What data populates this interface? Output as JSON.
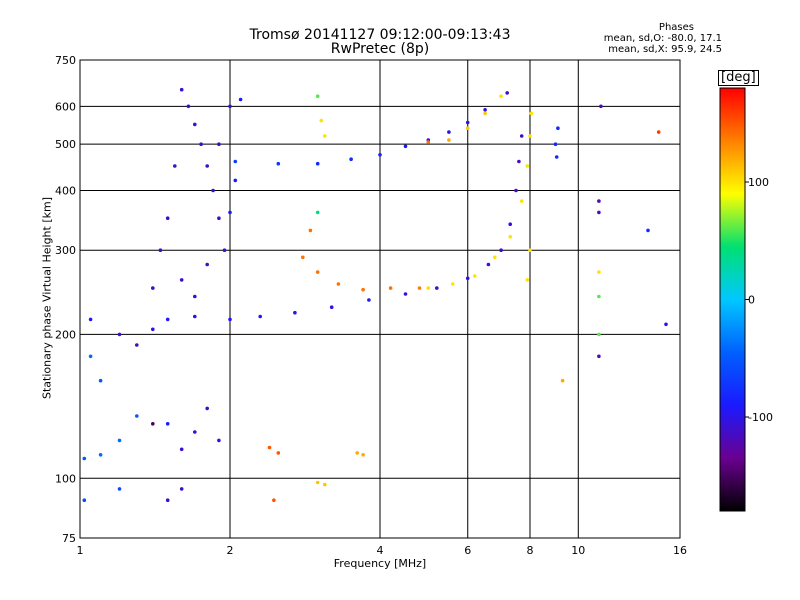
{
  "chart_data": {
    "type": "scatter",
    "title": "Tromsø 20141127 09:12:00-09:13:43",
    "subtitle": "RwPretec (8p)",
    "xlabel": "Frequency [MHz]",
    "ylabel": "Stationary phase Virtual Height [km]",
    "x_scale": "log",
    "y_scale": "log",
    "xlim": [
      1,
      16
    ],
    "ylim": [
      75,
      750
    ],
    "x_ticks": [
      1,
      2,
      4,
      6,
      8,
      10,
      16
    ],
    "y_ticks": [
      75,
      100,
      200,
      300,
      400,
      500,
      600,
      750
    ],
    "grid": true,
    "colorbar": {
      "label": "[deg]",
      "range": [
        -180,
        180
      ],
      "ticks": [
        100,
        0,
        -100
      ],
      "colormap": [
        "#000000",
        "#6a0090",
        "#1a1aff",
        "#0060ff",
        "#00c8ff",
        "#00e070",
        "#ffff00",
        "#ff8000",
        "#ff0000"
      ]
    },
    "phases": {
      "title": "Phases",
      "o_stats": "mean, sd,O: -80.0, 17.1",
      "x_stats": "mean, sd,X:  95.9, 24.5"
    },
    "series": [
      {
        "name": "",
        "points": [
          [
            1.05,
            215,
            -90
          ],
          [
            1.2,
            200,
            -110
          ],
          [
            1.3,
            190,
            -120
          ],
          [
            1.4,
            205,
            -100
          ],
          [
            1.5,
            215,
            -95
          ],
          [
            1.7,
            218,
            -100
          ],
          [
            2.0,
            215,
            -95
          ],
          [
            2.3,
            218,
            -95
          ],
          [
            2.7,
            222,
            -95
          ],
          [
            3.2,
            228,
            -100
          ],
          [
            3.8,
            236,
            -95
          ],
          [
            4.5,
            243,
            -100
          ],
          [
            5.2,
            250,
            -105
          ],
          [
            6.0,
            262,
            -105
          ],
          [
            6.6,
            280,
            -110
          ],
          [
            7.0,
            300,
            -110
          ],
          [
            7.3,
            340,
            -110
          ],
          [
            7.5,
            400,
            -115
          ],
          [
            7.6,
            460,
            -115
          ],
          [
            7.7,
            520,
            -115
          ]
        ]
      },
      {
        "name": "",
        "points": [
          [
            1.6,
            650,
            -110
          ],
          [
            1.65,
            600,
            -110
          ],
          [
            1.7,
            550,
            -110
          ],
          [
            1.75,
            500,
            -110
          ],
          [
            1.8,
            450,
            -110
          ],
          [
            1.85,
            400,
            -110
          ],
          [
            1.9,
            350,
            -110
          ],
          [
            1.95,
            300,
            -110
          ],
          [
            1.55,
            450,
            -110
          ],
          [
            1.5,
            350,
            -110
          ],
          [
            1.45,
            300,
            -110
          ],
          [
            1.4,
            250,
            -110
          ],
          [
            1.6,
            260,
            -110
          ],
          [
            1.7,
            240,
            -110
          ],
          [
            1.8,
            280,
            -110
          ],
          [
            1.9,
            500,
            -110
          ],
          [
            2.0,
            600,
            -110
          ],
          [
            2.1,
            620,
            -90
          ],
          [
            2.05,
            420,
            -90
          ],
          [
            2.0,
            360,
            -90
          ]
        ]
      },
      {
        "name": "",
        "points": [
          [
            2.05,
            460,
            -70
          ],
          [
            2.5,
            455,
            -70
          ],
          [
            3.0,
            455,
            -80
          ],
          [
            3.5,
            465,
            -80
          ],
          [
            4.0,
            475,
            -85
          ],
          [
            4.5,
            495,
            -90
          ],
          [
            5.0,
            510,
            -95
          ],
          [
            5.5,
            530,
            -100
          ],
          [
            6.0,
            555,
            -100
          ],
          [
            6.5,
            590,
            -105
          ],
          [
            7.2,
            640,
            -110
          ]
        ]
      },
      {
        "name": "",
        "points": [
          [
            2.8,
            290,
            140
          ],
          [
            3.0,
            270,
            140
          ],
          [
            3.3,
            255,
            140
          ],
          [
            3.7,
            248,
            140
          ],
          [
            4.2,
            250,
            140
          ],
          [
            4.8,
            250,
            135
          ],
          [
            5.0,
            505,
            140
          ],
          [
            5.5,
            510,
            120
          ],
          [
            6.0,
            540,
            110
          ],
          [
            6.5,
            580,
            110
          ],
          [
            7.0,
            630,
            100
          ]
        ]
      },
      {
        "name": "",
        "points": [
          [
            5.0,
            250,
            100
          ],
          [
            5.6,
            255,
            100
          ],
          [
            6.2,
            265,
            100
          ],
          [
            6.8,
            290,
            100
          ],
          [
            7.3,
            320,
            100
          ],
          [
            7.7,
            380,
            100
          ],
          [
            7.9,
            450,
            100
          ],
          [
            8.0,
            520,
            100
          ],
          [
            8.05,
            580,
            100
          ],
          [
            8.0,
            300,
            100
          ],
          [
            7.9,
            260,
            100
          ]
        ]
      },
      {
        "name": "",
        "points": [
          [
            1.02,
            110,
            -50
          ],
          [
            1.1,
            112,
            -40
          ],
          [
            1.2,
            120,
            -40
          ],
          [
            1.3,
            135,
            -50
          ],
          [
            1.5,
            130,
            -90
          ],
          [
            1.6,
            115,
            -110
          ],
          [
            1.7,
            125,
            -100
          ],
          [
            1.8,
            140,
            -110
          ],
          [
            1.9,
            120,
            -100
          ],
          [
            1.05,
            180,
            -40
          ],
          [
            1.1,
            160,
            -50
          ],
          [
            1.02,
            90,
            -60
          ],
          [
            1.2,
            95,
            -60
          ],
          [
            1.5,
            90,
            -110
          ],
          [
            1.6,
            95,
            -110
          ],
          [
            1.4,
            130,
            -150
          ]
        ]
      },
      {
        "name": "",
        "points": [
          [
            2.4,
            116,
            150
          ],
          [
            2.5,
            113,
            150
          ],
          [
            2.45,
            90,
            150
          ],
          [
            3.0,
            98,
            110
          ],
          [
            3.1,
            97,
            110
          ],
          [
            3.6,
            113,
            120
          ],
          [
            3.7,
            112,
            120
          ],
          [
            3.0,
            630,
            60
          ],
          [
            3.05,
            560,
            100
          ],
          [
            3.1,
            520,
            100
          ],
          [
            2.9,
            330,
            140
          ],
          [
            3.0,
            360,
            40
          ]
        ]
      },
      {
        "name": "",
        "points": [
          [
            9.0,
            500,
            -80
          ],
          [
            9.05,
            470,
            -80
          ],
          [
            9.1,
            540,
            -80
          ],
          [
            11.0,
            380,
            -120
          ],
          [
            11.0,
            360,
            -120
          ],
          [
            11.0,
            270,
            100
          ],
          [
            11.0,
            240,
            60
          ],
          [
            11.0,
            200,
            60
          ],
          [
            11.0,
            180,
            -120
          ],
          [
            11.1,
            600,
            -120
          ],
          [
            9.3,
            160,
            120
          ],
          [
            14.5,
            530,
            160
          ],
          [
            13.8,
            330,
            -80
          ],
          [
            15.0,
            210,
            -100
          ]
        ]
      }
    ]
  }
}
